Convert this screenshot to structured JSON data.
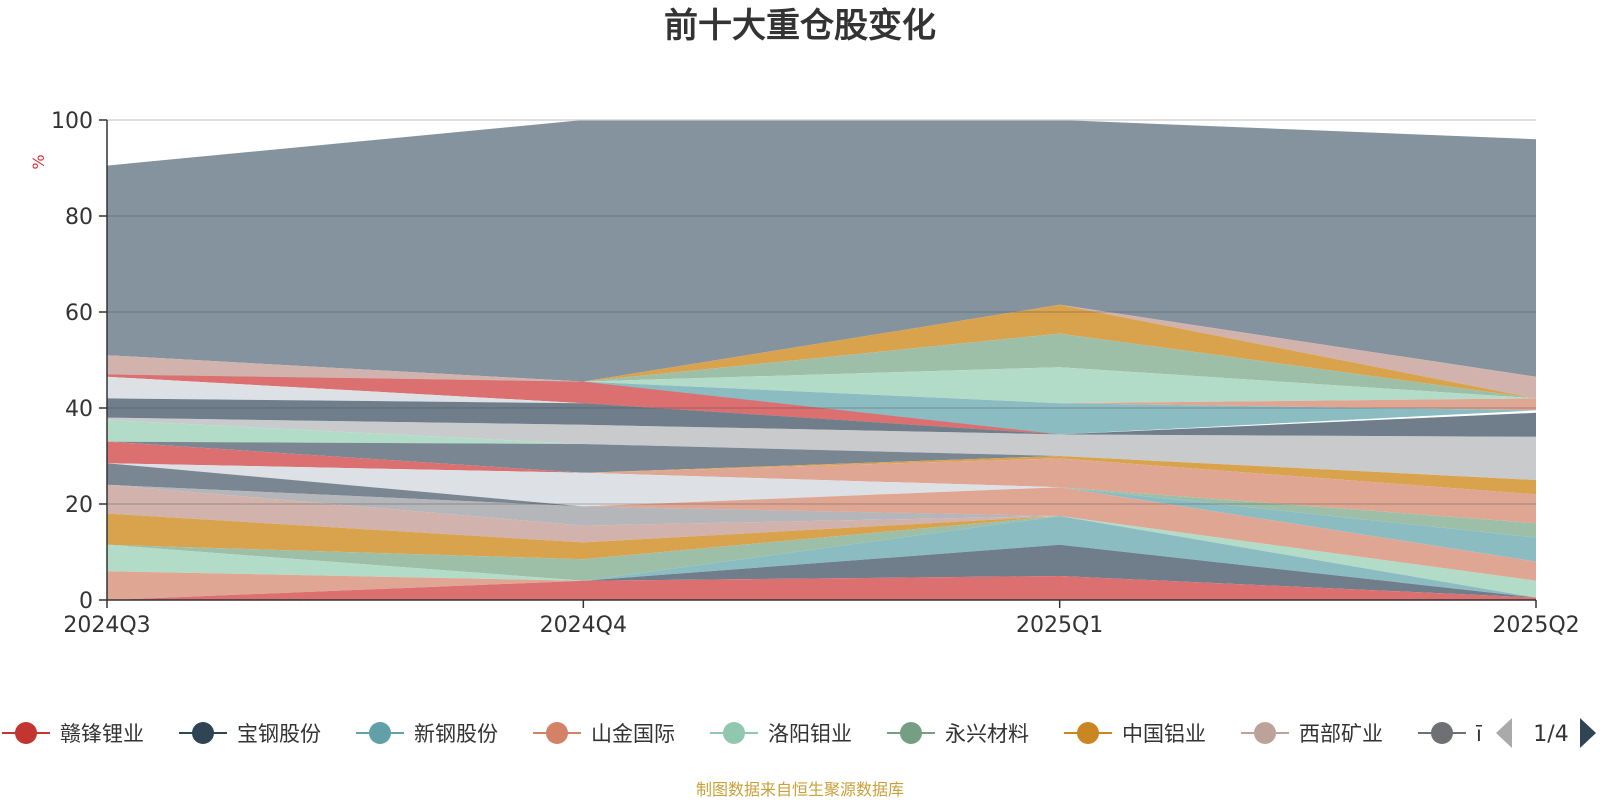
{
  "chart_data": {
    "type": "area",
    "title": "前十大重仓股变化",
    "ylabel": "%",
    "ylim": [
      0,
      100
    ],
    "yticks": [
      0,
      20,
      40,
      60,
      80,
      100
    ],
    "grid": true,
    "categories": [
      "2024Q3",
      "2024Q4",
      "2025Q1",
      "2025Q2"
    ],
    "bands": [
      {
        "color": "#7a8a96",
        "opacity": 0.92,
        "upper": [
          90.5,
          100,
          100,
          96
        ],
        "lower": [
          51,
          45.5,
          61.5,
          46.5
        ]
      },
      {
        "color": "#d1b2ad",
        "opacity": 1,
        "upper": [
          51,
          45.5,
          61.5,
          46.5
        ],
        "lower": [
          47,
          45.5,
          61.5,
          42
        ]
      },
      {
        "color": "#d9a34e",
        "opacity": 1,
        "upper": [
          47,
          45.5,
          61.5,
          42
        ],
        "lower": [
          47,
          45.5,
          55.5,
          42
        ]
      },
      {
        "color": "#9dbfa8",
        "opacity": 1,
        "upper": [
          47,
          45.5,
          55.5,
          42
        ],
        "lower": [
          47,
          45.5,
          48.5,
          42
        ]
      },
      {
        "color": "#b3dcc8",
        "opacity": 1,
        "upper": [
          47,
          45.5,
          48.5,
          42
        ],
        "lower": [
          47,
          45.5,
          41,
          42
        ]
      },
      {
        "color": "#dfa793",
        "opacity": 1,
        "upper": [
          47,
          45.5,
          41,
          42
        ],
        "lower": [
          47,
          45.5,
          41,
          39.5
        ]
      },
      {
        "color": "#8bbcc2",
        "opacity": 1,
        "upper": [
          47,
          45.5,
          41,
          39.5
        ],
        "lower": [
          47,
          41,
          34.5,
          39.5
        ]
      },
      {
        "color": "#dc7070",
        "opacity": 1,
        "upper": [
          47,
          45.5,
          34.5,
          39.5
        ],
        "lower": [
          46.5,
          41,
          34.5,
          39.5
        ]
      },
      {
        "color": "#dde1e6",
        "opacity": 1,
        "upper": [
          46.5,
          41,
          34.5,
          39.5
        ],
        "lower": [
          42,
          41,
          34.5,
          39.5
        ]
      },
      {
        "color": "#6f7e8a",
        "opacity": 1,
        "upper": [
          42,
          41,
          34.5,
          39
        ],
        "lower": [
          38,
          36.5,
          34.5,
          34
        ]
      },
      {
        "color": "#9c9ea1",
        "opacity": 0.55,
        "upper": [
          38,
          36.5,
          34.5,
          34
        ],
        "lower": [
          37.5,
          32.5,
          30,
          25
        ]
      },
      {
        "color": "#b3dcc8",
        "opacity": 1,
        "upper": [
          37.5,
          32.5,
          30,
          25
        ],
        "lower": [
          33,
          32.5,
          30,
          25
        ]
      },
      {
        "color": "#7a8793",
        "opacity": 1,
        "upper": [
          33,
          32.5,
          30,
          25
        ],
        "lower": [
          33,
          26.5,
          30,
          25
        ]
      },
      {
        "color": "#d9a34e",
        "opacity": 1,
        "upper": [
          33,
          26.5,
          30,
          25
        ],
        "lower": [
          33,
          26.5,
          29.5,
          22
        ]
      },
      {
        "color": "#dc7070",
        "opacity": 1,
        "upper": [
          33,
          26.5,
          29.5,
          22
        ],
        "lower": [
          28.5,
          26.5,
          29.5,
          22
        ]
      },
      {
        "color": "#dfa793",
        "opacity": 1,
        "upper": [
          28.5,
          26.5,
          29.5,
          22
        ],
        "lower": [
          28.5,
          26.5,
          23.5,
          16
        ]
      },
      {
        "color": "#dde1e6",
        "opacity": 1,
        "upper": [
          28.5,
          26.5,
          23.5,
          16
        ],
        "lower": [
          28.5,
          19.5,
          23.5,
          16
        ]
      },
      {
        "color": "#9dbfa8",
        "opacity": 1,
        "upper": [
          28.5,
          19.5,
          23.5,
          16
        ],
        "lower": [
          28.5,
          19.5,
          23.5,
          13
        ]
      },
      {
        "color": "#7a8793",
        "opacity": 1,
        "upper": [
          28.5,
          19.5,
          23.5,
          13
        ],
        "lower": [
          24,
          19.5,
          23.5,
          13
        ]
      },
      {
        "color": "#8bbcc2",
        "opacity": 1,
        "upper": [
          24,
          19.5,
          23.5,
          13
        ],
        "lower": [
          24,
          19.5,
          23.5,
          8
        ]
      },
      {
        "color": "#dfa793",
        "opacity": 1,
        "upper": [
          24,
          19.5,
          23.5,
          8
        ],
        "lower": [
          24,
          19.5,
          17.5,
          4
        ]
      },
      {
        "color": "#dde1e6",
        "opacity": 1,
        "upper": [
          24,
          19.5,
          17.5,
          4
        ],
        "lower": [
          24,
          19.5,
          17.5,
          4
        ]
      },
      {
        "color": "#9c9ea1",
        "opacity": 0.75,
        "upper": [
          24,
          19.5,
          17.5,
          4
        ],
        "lower": [
          24,
          15.5,
          17.5,
          4
        ]
      },
      {
        "color": "#d1b2ad",
        "opacity": 1,
        "upper": [
          24,
          15.5,
          17.5,
          4
        ],
        "lower": [
          18,
          12,
          17.5,
          4
        ]
      },
      {
        "color": "#d9a34e",
        "opacity": 1,
        "upper": [
          18,
          12,
          17.5,
          4
        ],
        "lower": [
          11.5,
          8.5,
          17.5,
          4
        ]
      },
      {
        "color": "#9dbfa8",
        "opacity": 1,
        "upper": [
          11.5,
          8.5,
          17.5,
          4
        ],
        "lower": [
          11.5,
          4,
          17.5,
          4
        ]
      },
      {
        "color": "#b3dcc8",
        "opacity": 1,
        "upper": [
          11.5,
          4,
          17.5,
          4
        ],
        "lower": [
          6,
          4,
          17.5,
          0.5
        ]
      },
      {
        "color": "#8bbcc2",
        "opacity": 1,
        "upper": [
          6,
          4,
          17.5,
          0.5
        ],
        "lower": [
          6,
          4,
          11.5,
          0.5
        ]
      },
      {
        "color": "#dfa793",
        "opacity": 1,
        "upper": [
          6,
          4,
          11.5,
          0.5
        ],
        "lower": [
          0,
          4,
          11.5,
          0.5
        ]
      },
      {
        "color": "#6f7e8a",
        "opacity": 1,
        "upper": [
          0,
          4,
          11.5,
          0.5
        ],
        "lower": [
          0,
          4,
          5,
          0.5
        ]
      },
      {
        "color": "#dc7070",
        "opacity": 1,
        "upper": [
          0,
          4,
          5,
          0.5
        ],
        "lower": [
          0,
          0,
          0,
          0
        ]
      }
    ],
    "legend": {
      "placement": "bottom",
      "items": [
        {
          "name": "赣锋锂业",
          "color": "#c23531"
        },
        {
          "name": "宝钢股份",
          "color": "#2f4554"
        },
        {
          "name": "新钢股份",
          "color": "#61a0a8"
        },
        {
          "name": "山金国际",
          "color": "#d48265"
        },
        {
          "name": "洛阳钼业",
          "color": "#91c7ae"
        },
        {
          "name": "永兴材料",
          "color": "#749f83"
        },
        {
          "name": "中国铝业",
          "color": "#ca8622"
        },
        {
          "name": "西部矿业",
          "color": "#bda29a"
        },
        {
          "name": "",
          "color": "#6e7074",
          "partial_text": "ī"
        }
      ],
      "page": "1/4"
    },
    "source": "制图数据来自恒生聚源数据库"
  }
}
